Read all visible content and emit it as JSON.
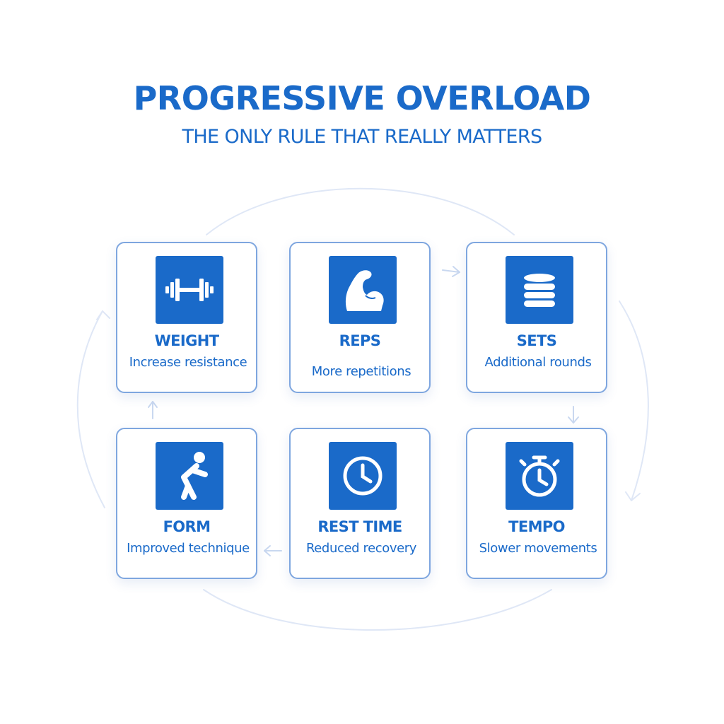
{
  "header": {
    "title": "PROGRESSIVE OVERLOAD",
    "subtitle": "THE ONLY RULE THAT REALLY MATTERS"
  },
  "colors": {
    "accent": "#1a6ac9",
    "card_border": "#7ea6df",
    "cycle_line": "#dfe7f6",
    "background": "#ffffff"
  },
  "cards": [
    {
      "label": "WEIGHT",
      "description": "Increase resistance",
      "icon": "barbell-icon"
    },
    {
      "label": "REPS",
      "description": "More repetitions",
      "icon": "flexed-bicep-icon"
    },
    {
      "label": "SETS",
      "description": "Additional rounds",
      "icon": "stacked-plates-icon"
    },
    {
      "label": "FORM",
      "description": "Improved technique",
      "icon": "squat-figure-icon"
    },
    {
      "label": "REST TIME",
      "description": "Reduced recovery",
      "icon": "clock-icon"
    },
    {
      "label": "TEMPO",
      "description": "Slower movements",
      "icon": "stopwatch-icon"
    }
  ]
}
